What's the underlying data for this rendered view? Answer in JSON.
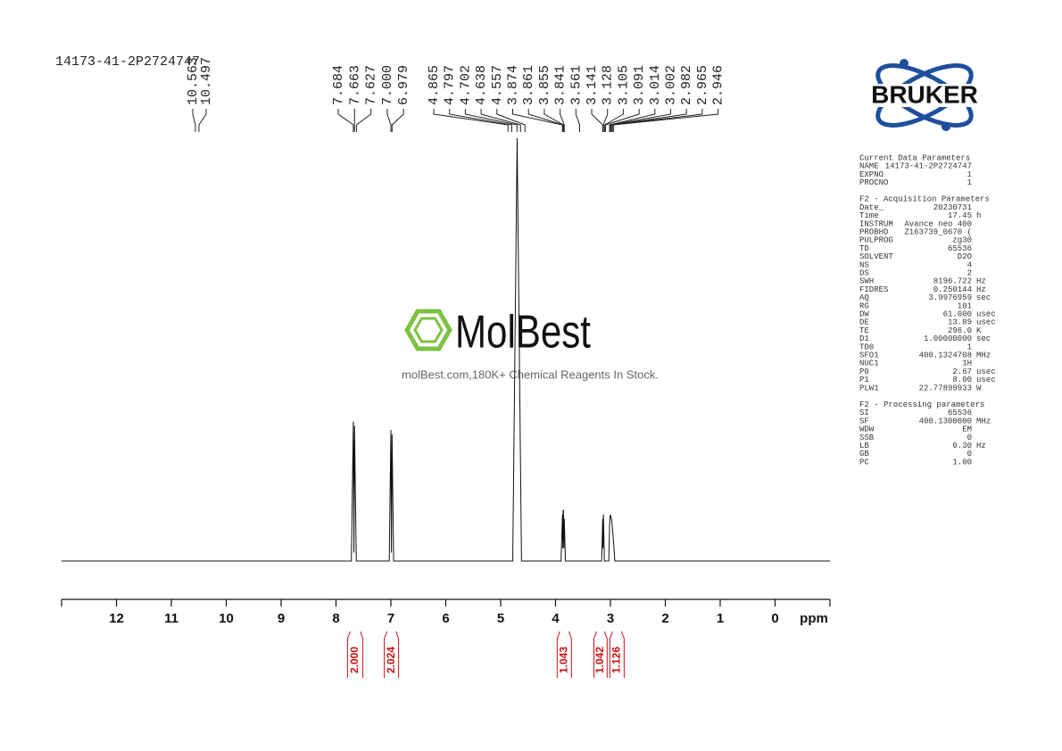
{
  "chart_data": {
    "type": "nmr",
    "title": "14173-41-2P2724747",
    "x_label": "ppm",
    "xlim": [
      13,
      -1
    ],
    "xticks": [
      12,
      11,
      10,
      9,
      8,
      7,
      6,
      5,
      4,
      3,
      2,
      1,
      0
    ],
    "ylim": [
      0,
      100
    ],
    "color": "#111111",
    "x": [
      13,
      7.72,
      7.684,
      7.673,
      7.663,
      7.63,
      7.03,
      {
        "value": 7.0,
        "label": "7.000"
      },
      6.99,
      6.979,
      6.95,
      4.78,
      4.7,
      4.62,
      3.9,
      3.874,
      3.868,
      3.861,
      3.855,
      3.848,
      3.841,
      3.82,
      3.16,
      3.141,
      3.135,
      3.128,
      3.11,
      3.03,
      3.014,
      3.002,
      2.982,
      2.965,
      2.946,
      2.92,
      -1
    ],
    "values": [
      0,
      0,
      33,
      2,
      32,
      0,
      0,
      31,
      2,
      30,
      0,
      0,
      100,
      0,
      0,
      11,
      3,
      12,
      12,
      3,
      10,
      0,
      0,
      10,
      3,
      11,
      0,
      0,
      9,
      11,
      10,
      8,
      5,
      0,
      0
    ],
    "peak_label_groups": [
      [
        10.563,
        10.497
      ],
      [
        7.684,
        7.663,
        7.627,
        {
          "value": 7.0,
          "label": "7.000"
        },
        6.979
      ],
      [
        4.865,
        4.797,
        4.702,
        4.638,
        4.557,
        3.874,
        3.861,
        3.855,
        3.841,
        3.561,
        3.141,
        3.128,
        3.105,
        3.091,
        3.014,
        3.002,
        2.982,
        2.965,
        2.946
      ]
    ],
    "integrals": {
      "color": "#cc1111",
      "ranges": [
        [
          7.79,
          7.51
        ],
        [
          7.12,
          6.86
        ],
        [
          3.97,
          3.71
        ],
        [
          3.3,
          3.06
        ],
        [
          3.01,
          2.75
        ]
      ],
      "values": [
        2.0,
        2.024,
        1.043,
        1.042,
        1.126
      ],
      "value_labels": [
        "2.000",
        "2.024",
        "1.043",
        "1.042",
        "1.126"
      ]
    }
  },
  "watermark": {
    "name": "MolBest",
    "tagline": "molBest.com,180K+ Chemical Reagents In Stock."
  },
  "logo": "BRUKER",
  "parameters": [
    {
      "heading": "Current Data Parameters",
      "rows": [
        [
          "NAME",
          "14173-41-2P2724747"
        ],
        [
          "EXPNO",
          "1"
        ],
        [
          "PROCNO",
          "1"
        ]
      ]
    },
    {
      "heading": "F2 - Acquisition Parameters",
      "rows": [
        [
          "Date_",
          "20230731"
        ],
        [
          "Time",
          "17.45",
          "h"
        ],
        [
          "INSTRUM",
          "Avance neo 400"
        ],
        [
          "PROBHD",
          "Z163739_0670 ("
        ],
        [
          "PULPROG",
          "zg30"
        ],
        [
          "TD",
          "65536"
        ],
        [
          "SOLVENT",
          "D2O"
        ],
        [
          "NS",
          "4"
        ],
        [
          "DS",
          "2"
        ],
        [
          "SWH",
          "8196.722",
          "Hz"
        ],
        [
          "FIDRES",
          "0.250144",
          "Hz"
        ],
        [
          "AQ",
          "3.9976959",
          "sec"
        ],
        [
          "RG",
          "101"
        ],
        [
          "DW",
          "61.000",
          "usec"
        ],
        [
          "DE",
          "13.89",
          "usec"
        ],
        [
          "TE",
          "296.0",
          "K"
        ],
        [
          "D1",
          "1.00000000",
          "sec"
        ],
        [
          "TD0",
          "1"
        ],
        [
          "SFO1",
          "400.1324708",
          "MHz"
        ],
        [
          "NUC1",
          "1H"
        ],
        [
          "P0",
          "2.67",
          "usec"
        ],
        [
          "P1",
          "8.00",
          "usec"
        ],
        [
          "PLW1",
          "22.77899933",
          "W"
        ]
      ]
    },
    {
      "heading": "F2 - Processing parameters",
      "rows": [
        [
          "SI",
          "65536"
        ],
        [
          "SF",
          "400.1300000",
          "MHz"
        ],
        [
          "WDW",
          "EM"
        ],
        [
          "SSB",
          "0"
        ],
        [
          "LB",
          "0.30",
          "Hz"
        ],
        [
          "GB",
          "0"
        ],
        [
          "PC",
          "1.00"
        ]
      ]
    }
  ]
}
